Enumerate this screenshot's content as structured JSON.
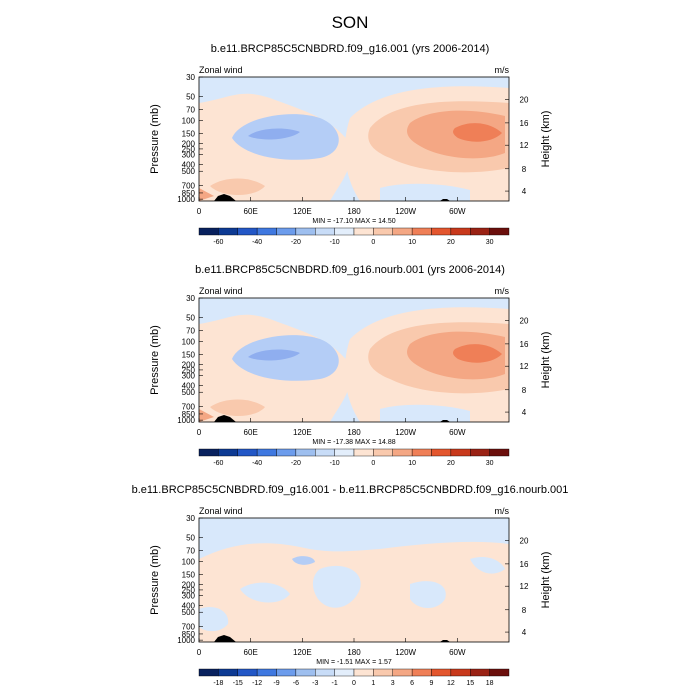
{
  "main_title": "SON",
  "colors": {
    "positive": [
      "#fde4d3",
      "#f9c9ad",
      "#f4a784",
      "#ef7f57",
      "#e3562e"
    ],
    "negative": [
      "#d8e8fb",
      "#b4cdf6",
      "#8faeef"
    ],
    "terrain": "#000000"
  },
  "chart_data": [
    {
      "type": "heatmap",
      "title": "b.e11.BRCP85C5CNBDRD.f09_g16.001 (yrs 2006-2014)",
      "left_label": "Zonal wind",
      "right_label": "m/s",
      "ylabel": "Pressure (mb)",
      "y2label": "Height (km)",
      "pressure_ticks": [
        "30",
        "50",
        "70",
        "100",
        "150",
        "200",
        "250",
        "300",
        "400",
        "500",
        "700",
        "850",
        "1000"
      ],
      "height_ticks": [
        "4",
        "8",
        "12",
        "16",
        "20"
      ],
      "lon_ticks": [
        "0",
        "60E",
        "120E",
        "180",
        "120W",
        "60W"
      ],
      "stats": "MIN = -17.10  MAX = 14.50",
      "colorbar_labels": [
        "-60",
        "-40",
        "-20",
        "-10",
        "0",
        "10",
        "20",
        "30"
      ],
      "min": -17.1,
      "max": 14.5
    },
    {
      "type": "heatmap",
      "title": "b.e11.BRCP85C5CNBDRD.f09_g16.nourb.001 (yrs 2006-2014)",
      "left_label": "Zonal wind",
      "right_label": "m/s",
      "ylabel": "Pressure (mb)",
      "y2label": "Height (km)",
      "pressure_ticks": [
        "30",
        "50",
        "70",
        "100",
        "150",
        "200",
        "250",
        "300",
        "400",
        "500",
        "700",
        "850",
        "1000"
      ],
      "height_ticks": [
        "4",
        "8",
        "12",
        "16",
        "20"
      ],
      "lon_ticks": [
        "0",
        "60E",
        "120E",
        "180",
        "120W",
        "60W"
      ],
      "stats": "MIN = -17.38  MAX = 14.88",
      "colorbar_labels": [
        "-60",
        "-40",
        "-20",
        "-10",
        "0",
        "10",
        "20",
        "30"
      ],
      "min": -17.38,
      "max": 14.88
    },
    {
      "type": "heatmap",
      "title": "b.e11.BRCP85C5CNBDRD.f09_g16.001 - b.e11.BRCP85C5CNBDRD.f09_g16.nourb.001",
      "left_label": "Zonal wind",
      "right_label": "m/s",
      "ylabel": "Pressure (mb)",
      "y2label": "Height (km)",
      "pressure_ticks": [
        "30",
        "50",
        "70",
        "100",
        "150",
        "200",
        "250",
        "300",
        "400",
        "500",
        "700",
        "850",
        "1000"
      ],
      "height_ticks": [
        "4",
        "8",
        "12",
        "16",
        "20"
      ],
      "lon_ticks": [
        "0",
        "60E",
        "120E",
        "180",
        "120W",
        "60W"
      ],
      "stats": "MIN = -1.51  MAX = 1.57",
      "colorbar_labels": [
        "-18",
        "-15",
        "-12",
        "-9",
        "-6",
        "-3",
        "-1",
        "0",
        "1",
        "3",
        "6",
        "9",
        "12",
        "15",
        "18"
      ],
      "min": -1.51,
      "max": 1.57
    }
  ]
}
